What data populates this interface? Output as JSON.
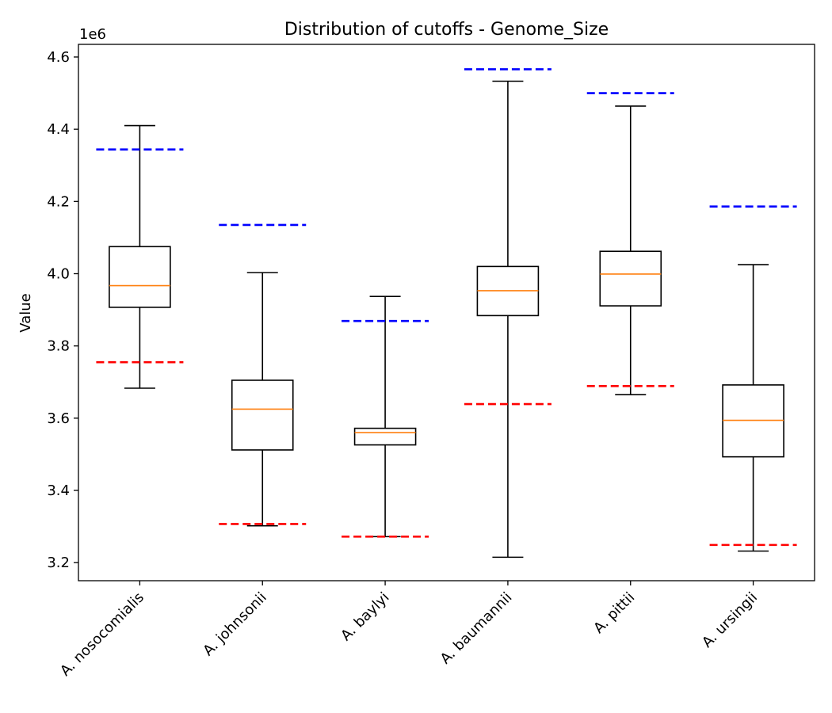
{
  "chart_data": {
    "type": "boxplot",
    "title": "Distribution of cutoffs - Genome_Size",
    "xlabel": "",
    "ylabel": "Value",
    "y_offset_label": "1e6",
    "y_scale_factor": 1000000,
    "ylim": [
      3.15,
      4.635
    ],
    "yticks": [
      3.2,
      3.4,
      3.6,
      3.8,
      4.0,
      4.2,
      4.4,
      4.6
    ],
    "ytick_labels": [
      "3.2",
      "3.4",
      "3.6",
      "3.8",
      "4.0",
      "4.2",
      "4.4",
      "4.6"
    ],
    "grid": false,
    "colors": {
      "box": "#000000",
      "median": "#ff7f0e",
      "upper_cutoff": "#0000ff",
      "lower_cutoff": "#ff0000"
    },
    "categories": [
      "A. nosocomialis",
      "A. johnsonii",
      "A. baylyi",
      "A. baumannii",
      "A. pittii",
      "A. ursingii"
    ],
    "boxes": [
      {
        "whisker_low": 3.683,
        "q1": 3.907,
        "median": 3.967,
        "q3": 4.075,
        "whisker_high": 4.41,
        "lower_cutoff": 3.755,
        "upper_cutoff": 4.344
      },
      {
        "whisker_low": 3.302,
        "q1": 3.512,
        "median": 3.625,
        "q3": 3.705,
        "whisker_high": 4.003,
        "lower_cutoff": 3.307,
        "upper_cutoff": 4.135
      },
      {
        "whisker_low": 3.272,
        "q1": 3.526,
        "median": 3.56,
        "q3": 3.572,
        "whisker_high": 3.937,
        "lower_cutoff": 3.272,
        "upper_cutoff": 3.869
      },
      {
        "whisker_low": 3.215,
        "q1": 3.884,
        "median": 3.953,
        "q3": 4.02,
        "whisker_high": 4.533,
        "lower_cutoff": 3.639,
        "upper_cutoff": 4.566
      },
      {
        "whisker_low": 3.665,
        "q1": 3.911,
        "median": 3.999,
        "q3": 4.062,
        "whisker_high": 4.464,
        "lower_cutoff": 3.689,
        "upper_cutoff": 4.5
      },
      {
        "whisker_low": 3.232,
        "q1": 3.493,
        "median": 3.594,
        "q3": 3.692,
        "whisker_high": 4.025,
        "lower_cutoff": 3.249,
        "upper_cutoff": 4.186
      }
    ]
  }
}
